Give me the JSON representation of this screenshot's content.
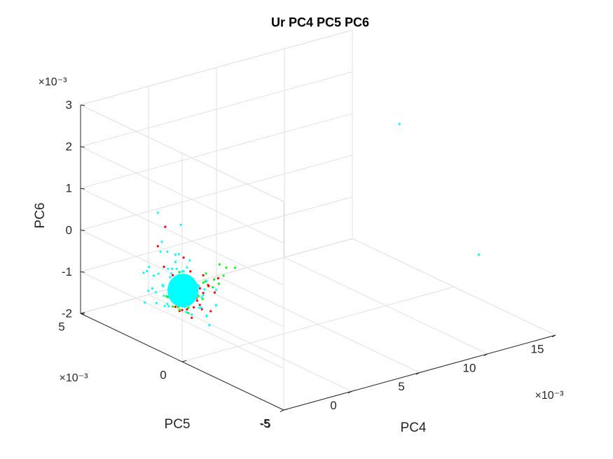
{
  "chart_data": {
    "type": "scatter",
    "projection": "3d",
    "title": "Ur PC4 PC5 PC6",
    "xlabel": "PC4",
    "ylabel": "PC5",
    "zlabel": "PC6",
    "x_exponent": "×10⁻³",
    "y_exponent": "×10⁻³",
    "z_exponent": "×10⁻³",
    "xlim": [
      -5,
      15
    ],
    "ylim": [
      -5,
      5
    ],
    "zlim": [
      -2,
      3
    ],
    "x_ticks": [
      "-5",
      "0",
      "5",
      "10",
      "15"
    ],
    "y_ticks": [
      "-5",
      "0",
      "5"
    ],
    "z_ticks": [
      "-2",
      "-1",
      "0",
      "1",
      "2",
      "3"
    ],
    "grid": true,
    "series": [
      {
        "color": "#ff0000",
        "points": [
          [
            -3.4,
            1.4,
            -1.15
          ],
          [
            -3.2,
            1.2,
            -1.2
          ],
          [
            -3.0,
            1.0,
            -1.05
          ],
          [
            -2.9,
            1.5,
            -0.95
          ],
          [
            -3.3,
            1.7,
            -1.0
          ],
          [
            -3.1,
            0.8,
            -1.3
          ],
          [
            -2.8,
            0.9,
            -1.1
          ],
          [
            -3.5,
            1.1,
            -0.9
          ],
          [
            -3.0,
            1.8,
            -0.85
          ],
          [
            -2.7,
            1.3,
            -1.25
          ],
          [
            -3.6,
            1.3,
            -0.6
          ],
          [
            -3.2,
            0.5,
            -0.75
          ],
          [
            -2.9,
            0.7,
            -0.5
          ],
          [
            -3.4,
            0.9,
            -0.35
          ],
          [
            -3.3,
            1.6,
            -0.45
          ],
          [
            -2.6,
            1.1,
            -0.8
          ],
          [
            -2.5,
            0.8,
            -0.65
          ],
          [
            -3.7,
            0.8,
            -0.55
          ],
          [
            -3.1,
            0.4,
            -0.9
          ],
          [
            -2.8,
            1.6,
            -1.35
          ],
          [
            -2.4,
            1.0,
            -1.0
          ],
          [
            -3.0,
            0.3,
            -0.6
          ],
          [
            -2.7,
            0.5,
            -0.25
          ],
          [
            -2.2,
            0.6,
            -0.55
          ],
          [
            -3.5,
            1.9,
            -0.3
          ],
          [
            -2.6,
            0.2,
            -1.05
          ],
          [
            -2.3,
            1.4,
            -0.4
          ],
          [
            -3.1,
            1.2,
            0.05
          ],
          [
            -2.9,
            0.1,
            -0.4
          ],
          [
            -2.2,
            0.9,
            -1.2
          ],
          [
            -4.0,
            1.5,
            0.8
          ],
          [
            -3.8,
            2.0,
            0.2
          ],
          [
            -2.5,
            -0.1,
            -0.2
          ],
          [
            -2.0,
            0.4,
            -0.7
          ]
        ]
      },
      {
        "color": "#00ff00",
        "points": [
          [
            -3.3,
            1.6,
            -1.2
          ],
          [
            -3.1,
            1.4,
            -1.25
          ],
          [
            -3.5,
            1.2,
            -1.1
          ],
          [
            -2.9,
            1.1,
            -1.15
          ],
          [
            -3.6,
            1.7,
            -0.95
          ],
          [
            -3.2,
            0.9,
            -1.2
          ],
          [
            -2.8,
            1.3,
            -0.95
          ],
          [
            -3.4,
            0.6,
            -0.8
          ],
          [
            -3.0,
            0.6,
            -0.7
          ],
          [
            -2.7,
            0.9,
            -0.6
          ],
          [
            -3.3,
            0.4,
            -0.45
          ],
          [
            -3.5,
            0.8,
            -0.4
          ],
          [
            -2.6,
            0.6,
            -0.85
          ],
          [
            -2.4,
            0.7,
            -0.5
          ],
          [
            -3.0,
            0.2,
            -0.3
          ],
          [
            -2.8,
            0.3,
            -0.15
          ],
          [
            -2.3,
            1.0,
            -0.9
          ],
          [
            -2.2,
            0.3,
            -0.35
          ],
          [
            -2.5,
            1.5,
            -1.1
          ],
          [
            -3.7,
            1.0,
            -0.2
          ],
          [
            -2.1,
            0.1,
            0.05
          ],
          [
            -2.4,
            -0.3,
            -0.1
          ],
          [
            -2.0,
            0.5,
            -0.6
          ],
          [
            -3.2,
            1.9,
            -1.05
          ],
          [
            -2.9,
            2.0,
            -1.0
          ],
          [
            -1.9,
            -0.1,
            0.0
          ],
          [
            -1.7,
            -0.4,
            0.05
          ],
          [
            -2.6,
            -0.2,
            -0.3
          ]
        ]
      },
      {
        "color": "#00ffff",
        "points": [
          [
            8.0,
            -2.0,
            3.0
          ],
          [
            9.5,
            -4.9,
            0.4
          ],
          [
            -3.3,
            1.0,
            -0.7
          ],
          [
            -3.2,
            1.1,
            -0.65
          ],
          [
            -3.1,
            1.0,
            -0.75
          ],
          [
            -3.4,
            1.2,
            -0.6
          ],
          [
            -3.0,
            0.9,
            -0.8
          ],
          [
            -3.5,
            1.1,
            -0.55
          ],
          [
            -3.2,
            0.8,
            -0.7
          ],
          [
            -3.3,
            1.3,
            -0.8
          ],
          [
            -3.1,
            1.2,
            -0.5
          ],
          [
            -3.4,
            0.9,
            -0.9
          ],
          [
            -3.6,
            1.0,
            -0.7
          ],
          [
            -3.0,
            1.1,
            -0.6
          ],
          [
            -3.2,
            1.4,
            -0.65
          ],
          [
            -3.3,
            0.7,
            -0.55
          ],
          [
            -3.5,
            1.3,
            -0.85
          ],
          [
            -3.1,
            0.6,
            -0.75
          ],
          [
            -3.6,
            1.4,
            -0.5
          ],
          [
            -2.9,
            1.0,
            -0.85
          ],
          [
            -3.4,
            1.5,
            -0.7
          ],
          [
            -3.2,
            0.5,
            -0.6
          ],
          [
            -3.7,
            1.2,
            -0.75
          ],
          [
            -3.0,
            1.5,
            -0.45
          ],
          [
            -2.8,
            0.8,
            -0.7
          ],
          [
            -3.5,
            0.7,
            -0.4
          ],
          [
            -3.3,
            1.6,
            -0.95
          ],
          [
            -3.8,
            1.3,
            -0.6
          ],
          [
            -3.1,
            1.7,
            -0.8
          ],
          [
            -2.9,
            0.6,
            -0.5
          ],
          [
            -3.6,
            0.8,
            -1.0
          ],
          [
            -3.4,
            0.4,
            -0.7
          ],
          [
            -3.9,
            1.0,
            -0.45
          ],
          [
            -3.0,
            0.3,
            -0.65
          ],
          [
            -3.2,
            1.8,
            -0.55
          ],
          [
            -2.7,
            1.1,
            -0.95
          ],
          [
            -3.5,
            1.7,
            -0.3
          ],
          [
            -3.8,
            0.9,
            -0.9
          ],
          [
            -2.8,
            1.4,
            -0.35
          ],
          [
            -3.3,
            0.2,
            -0.9
          ],
          [
            -3.7,
            1.6,
            -1.1
          ],
          [
            -3.1,
            1.9,
            -0.95
          ],
          [
            -4.0,
            1.2,
            -0.25
          ],
          [
            -3.6,
            0.3,
            -0.4
          ],
          [
            -2.6,
            0.8,
            -0.6
          ],
          [
            -3.9,
            1.7,
            -0.65
          ],
          [
            -3.4,
            2.0,
            -0.8
          ],
          [
            -2.9,
            0.2,
            -0.3
          ],
          [
            -3.2,
            1.0,
            -1.2
          ],
          [
            -3.5,
            1.0,
            -0.2
          ],
          [
            -3.0,
            1.3,
            -1.05
          ],
          [
            -3.3,
            1.4,
            -0.25
          ],
          [
            -3.7,
            0.5,
            -0.8
          ],
          [
            -2.8,
            1.7,
            -0.6
          ],
          [
            -4.1,
            1.5,
            -0.85
          ],
          [
            -3.4,
            0.6,
            -1.15
          ],
          [
            -3.1,
            1.6,
            -0.15
          ],
          [
            -3.6,
            2.1,
            -0.5
          ],
          [
            -3.0,
            0.5,
            -1.0
          ],
          [
            -3.8,
            0.6,
            -0.3
          ],
          [
            -2.7,
            1.5,
            -1.1
          ],
          [
            -3.3,
            0.9,
            -0.1
          ],
          [
            -3.9,
            2.2,
            -0.85
          ],
          [
            -4.2,
            0.9,
            -0.6
          ],
          [
            -3.2,
            0.1,
            -0.45
          ],
          [
            -3.5,
            2.3,
            -1.0
          ],
          [
            -2.9,
            1.9,
            -0.4
          ],
          [
            -3.6,
            1.1,
            0.2
          ],
          [
            -3.4,
            1.4,
            0.1
          ],
          [
            -3.8,
            1.8,
            0.35
          ],
          [
            -3.1,
            0.9,
            0.05
          ],
          [
            -4.3,
            1.2,
            0.3
          ],
          [
            -3.9,
            0.8,
            1.0
          ],
          [
            -4.4,
            1.6,
            1.15
          ],
          [
            -3.6,
            2.0,
            0.05
          ],
          [
            -3.3,
            2.4,
            -1.3
          ],
          [
            -2.6,
            0.4,
            -1.2
          ],
          [
            -4.0,
            2.5,
            -1.25
          ],
          [
            -3.0,
            2.2,
            -1.35
          ],
          [
            -4.5,
            1.0,
            -0.95
          ],
          [
            -3.7,
            -0.1,
            -0.55
          ],
          [
            -3.2,
            2.6,
            -0.7
          ],
          [
            -2.5,
            0.0,
            -0.5
          ],
          [
            -4.3,
            2.2,
            -0.4
          ],
          [
            -3.0,
            0.0,
            -1.3
          ],
          [
            -4.6,
            1.9,
            -0.2
          ],
          [
            -3.5,
            -0.2,
            -1.0
          ],
          [
            -3.3,
            2.8,
            -1.1
          ],
          [
            -2.8,
            -0.2,
            -0.8
          ],
          [
            -4.1,
            0.4,
            -0.2
          ],
          [
            -3.8,
            2.7,
            -0.6
          ]
        ]
      }
    ]
  }
}
